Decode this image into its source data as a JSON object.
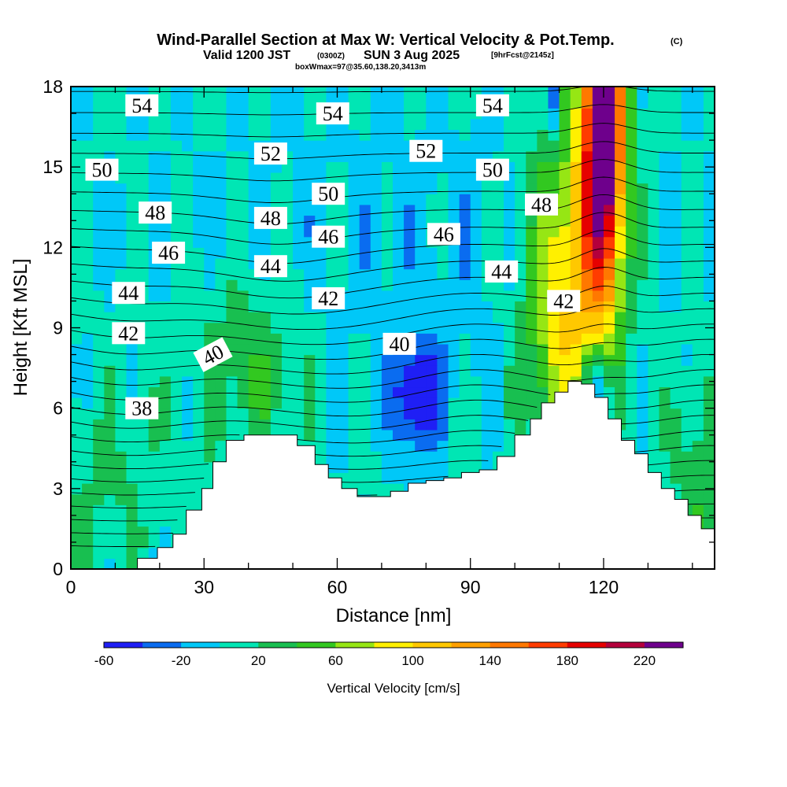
{
  "title": {
    "main": "Wind-Parallel Section at Max W: Vertical Velocity & Pot.Temp.",
    "copyright": "(C)",
    "valid_prefix": "Valid 1200 JST",
    "valid_z": "(0300Z)",
    "valid_date": "SUN 3 Aug 2025",
    "fcst": "[9hrFcst@2145z]",
    "box": "boxWmax=97@35.60,138.20,3413m"
  },
  "colors": {
    "palette": [
      "#1f1ff5",
      "#0a6cf0",
      "#00c8f8",
      "#00e6b4",
      "#18bf50",
      "#32c820",
      "#96e614",
      "#fff000",
      "#ffc800",
      "#ffa000",
      "#ff7800",
      "#ff3c00",
      "#e60000",
      "#b4003c",
      "#6e008c"
    ],
    "terrain": "#ffffff",
    "contour": "#000000"
  },
  "chart_data": {
    "type": "heatmap",
    "title": "Wind-Parallel Section at Max W: Vertical Velocity & Pot.Temp.",
    "xlabel": "Distance [nm]",
    "ylabel": "Height [Kft MSL]",
    "xlim": [
      0,
      145
    ],
    "ylim": [
      0,
      18
    ],
    "x_ticks": [
      0,
      30,
      60,
      90,
      120
    ],
    "y_ticks": [
      0,
      3,
      6,
      9,
      12,
      15,
      18
    ],
    "colorbar": {
      "label": "Vertical Velocity [cm/s]",
      "bounds": [
        -60,
        -40,
        -20,
        0,
        20,
        40,
        60,
        80,
        100,
        120,
        140,
        160,
        180,
        200,
        220,
        240
      ],
      "tick_labels": [
        "-60",
        "-20",
        "20",
        "60",
        "100",
        "140",
        "180",
        "220"
      ],
      "tick_values": [
        -60,
        -20,
        20,
        60,
        100,
        140,
        180,
        220
      ]
    },
    "terrain_profile": {
      "x": [
        0,
        5,
        10,
        15,
        19.5,
        23,
        26,
        29.5,
        32,
        35,
        39,
        43,
        47,
        51,
        55,
        58,
        61,
        64.5,
        68,
        72,
        76,
        80,
        84,
        88,
        92,
        96,
        100,
        103.5,
        106,
        109,
        112,
        115,
        118,
        121,
        124,
        127,
        130,
        133,
        136,
        139,
        142,
        145
      ],
      "height_kft": [
        0,
        0,
        0,
        0.4,
        0.8,
        1.3,
        2.2,
        3.0,
        4.0,
        4.8,
        5.0,
        5.0,
        5.0,
        4.6,
        3.9,
        3.4,
        3.0,
        2.7,
        2.7,
        2.9,
        3.2,
        3.3,
        3.4,
        3.6,
        3.7,
        4.2,
        5.0,
        5.6,
        6.2,
        6.6,
        7.0,
        6.9,
        6.4,
        5.6,
        4.8,
        4.3,
        3.6,
        3.0,
        2.6,
        2.0,
        1.5,
        1.3
      ]
    },
    "theta_contours": [
      {
        "level": 38,
        "label": "38"
      },
      {
        "level": 40,
        "label": "40"
      },
      {
        "level": 42,
        "label": "42"
      },
      {
        "level": 44,
        "label": "44"
      },
      {
        "level": 46,
        "label": "46"
      },
      {
        "level": 48,
        "label": "48"
      },
      {
        "level": 50,
        "label": "50"
      },
      {
        "level": 52,
        "label": "52"
      },
      {
        "level": 54,
        "label": "54"
      }
    ],
    "max_w_cm_s": 97,
    "max_w_location": "35.60,138.20,3413m"
  },
  "axis_labels": {
    "x": "Distance [nm]",
    "y": "Height [Kft MSL]"
  },
  "colorbar_label": "Vertical Velocity [cm/s]"
}
